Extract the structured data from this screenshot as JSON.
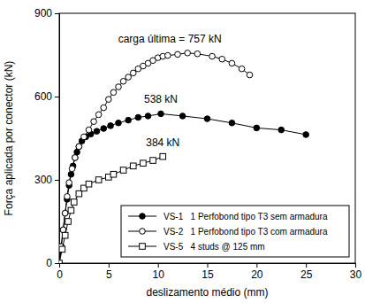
{
  "chart_data": {
    "type": "line",
    "x_label": "deslizamento médio (mm)",
    "y_label": "Força aplicada por conector (kN)",
    "xlim": [
      0,
      30
    ],
    "xticks": [
      0,
      5,
      10,
      15,
      20,
      25,
      30
    ],
    "ylim": [
      0,
      900
    ],
    "yticks": [
      0,
      300,
      600,
      900
    ],
    "legend": "lower-right",
    "grid": false,
    "annotations": [
      "538 kN",
      "carga última = 757 kN",
      "384 kN"
    ],
    "series": [
      {
        "name": "VS-1   1 Perfobond tipo T3 sem armadura",
        "color": "#000000",
        "marker": "circle-filled",
        "line_style": "solid",
        "x": [
          0,
          0.2,
          0.4,
          0.6,
          0.8,
          1.0,
          1.2,
          1.4,
          1.6,
          1.8,
          2.0,
          2.3,
          2.7,
          3.2,
          3.8,
          4.5,
          5.2,
          6,
          7,
          8,
          9,
          10.3,
          12.5,
          15,
          17.5,
          20,
          22.5,
          25
        ],
        "values": [
          0,
          60,
          120,
          180,
          230,
          280,
          320,
          350,
          380,
          400,
          420,
          440,
          455,
          465,
          475,
          485,
          495,
          505,
          515,
          525,
          530,
          538,
          530,
          520,
          505,
          487,
          480,
          463
        ]
      },
      {
        "name": "VS-2   1 Perfobond tipo T3 com armadura",
        "color": "#000000",
        "marker": "circle-open",
        "line_style": "solid",
        "x": [
          0,
          0.2,
          0.4,
          0.6,
          0.8,
          1.0,
          1.3,
          1.6,
          2.0,
          2.5,
          3.0,
          3.5,
          4,
          4.5,
          5,
          5.5,
          6,
          6.5,
          7,
          7.5,
          8,
          8.5,
          9,
          9.5,
          10,
          10.5,
          11,
          12,
          13,
          14,
          15.5,
          16.5,
          17.5,
          18.5,
          19.3
        ],
        "values": [
          0,
          60,
          120,
          180,
          240,
          290,
          340,
          380,
          420,
          455,
          480,
          510,
          535,
          560,
          590,
          615,
          635,
          655,
          670,
          685,
          700,
          710,
          720,
          730,
          740,
          745,
          748,
          752,
          757,
          754,
          745,
          735,
          720,
          700,
          678
        ]
      },
      {
        "name": "VS-5   4 studs @ 125 mm",
        "color": "#000000",
        "marker": "square-open",
        "line_style": "solid",
        "x": [
          0,
          0.3,
          0.6,
          0.9,
          1.2,
          1.5,
          2,
          2.5,
          3,
          4,
          5,
          5.5,
          6.5,
          7.5,
          8.5,
          9.5,
          10.5
        ],
        "values": [
          0,
          50,
          100,
          150,
          190,
          220,
          250,
          270,
          285,
          300,
          310,
          320,
          335,
          350,
          360,
          370,
          384
        ]
      }
    ]
  }
}
